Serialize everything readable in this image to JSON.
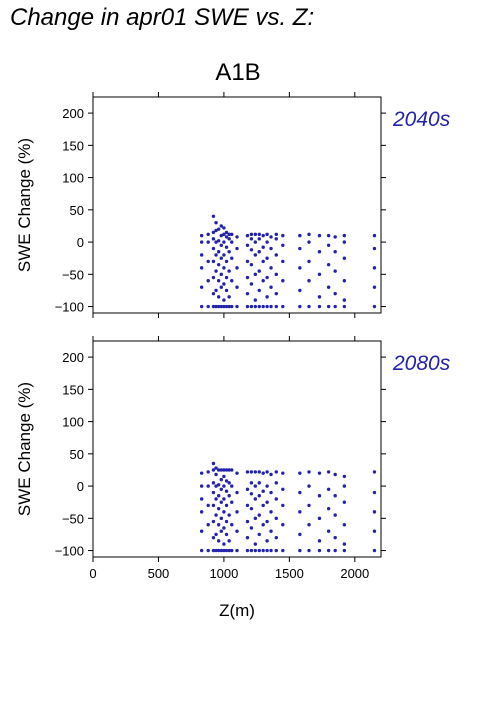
{
  "title": "Change in apr01 SWE vs. Z:",
  "chart_data": {
    "type": "scatter",
    "scenario": "A1B",
    "xlabel": "Z(m)",
    "ylabel": "SWE Change (%)",
    "xlim": [
      0,
      2200
    ],
    "ylim": [
      -110,
      225
    ],
    "x_ticks": [
      0,
      500,
      1000,
      1500,
      2000
    ],
    "y_ticks": [
      -100,
      -50,
      0,
      50,
      100,
      150,
      200
    ],
    "marker_color": "#2222aa",
    "label_color": "#2222aa",
    "grid": false,
    "panels": [
      {
        "label": "2040s",
        "points": [
          [
            830,
            -100
          ],
          [
            830,
            -70
          ],
          [
            830,
            -40
          ],
          [
            830,
            -20
          ],
          [
            830,
            0
          ],
          [
            830,
            10
          ],
          [
            880,
            -100
          ],
          [
            880,
            -60
          ],
          [
            880,
            -30
          ],
          [
            880,
            0
          ],
          [
            880,
            12
          ],
          [
            920,
            -100
          ],
          [
            920,
            -80
          ],
          [
            920,
            -55
          ],
          [
            920,
            -30
          ],
          [
            920,
            -10
          ],
          [
            920,
            5
          ],
          [
            920,
            15
          ],
          [
            920,
            40
          ],
          [
            940,
            -100
          ],
          [
            940,
            -75
          ],
          [
            940,
            -45
          ],
          [
            940,
            -20
          ],
          [
            940,
            0
          ],
          [
            940,
            18
          ],
          [
            940,
            30
          ],
          [
            960,
            -100
          ],
          [
            960,
            -85
          ],
          [
            960,
            -60
          ],
          [
            960,
            -35
          ],
          [
            960,
            -15
          ],
          [
            960,
            2
          ],
          [
            960,
            20
          ],
          [
            980,
            -100
          ],
          [
            980,
            -70
          ],
          [
            980,
            -50
          ],
          [
            980,
            -25
          ],
          [
            980,
            -5
          ],
          [
            980,
            10
          ],
          [
            980,
            25
          ],
          [
            1000,
            -100
          ],
          [
            1000,
            -90
          ],
          [
            1000,
            -65
          ],
          [
            1000,
            -40
          ],
          [
            1000,
            -20
          ],
          [
            1000,
            0
          ],
          [
            1000,
            12
          ],
          [
            1000,
            22
          ],
          [
            1020,
            -100
          ],
          [
            1020,
            -75
          ],
          [
            1020,
            -55
          ],
          [
            1020,
            -30
          ],
          [
            1020,
            -8
          ],
          [
            1020,
            8
          ],
          [
            1020,
            15
          ],
          [
            1040,
            -100
          ],
          [
            1040,
            -85
          ],
          [
            1040,
            -45
          ],
          [
            1040,
            -15
          ],
          [
            1040,
            5
          ],
          [
            1040,
            12
          ],
          [
            1060,
            -100
          ],
          [
            1060,
            -60
          ],
          [
            1060,
            -25
          ],
          [
            1060,
            0
          ],
          [
            1060,
            12
          ],
          [
            1100,
            -100
          ],
          [
            1100,
            -70
          ],
          [
            1100,
            -40
          ],
          [
            1100,
            -10
          ],
          [
            1100,
            8
          ],
          [
            1180,
            -100
          ],
          [
            1180,
            -80
          ],
          [
            1180,
            -55
          ],
          [
            1180,
            -30
          ],
          [
            1180,
            -5
          ],
          [
            1180,
            10
          ],
          [
            1210,
            -100
          ],
          [
            1210,
            -65
          ],
          [
            1210,
            -35
          ],
          [
            1210,
            -12
          ],
          [
            1210,
            5
          ],
          [
            1210,
            12
          ],
          [
            1240,
            -100
          ],
          [
            1240,
            -90
          ],
          [
            1240,
            -50
          ],
          [
            1240,
            -20
          ],
          [
            1240,
            0
          ],
          [
            1240,
            12
          ],
          [
            1270,
            -100
          ],
          [
            1270,
            -75
          ],
          [
            1270,
            -45
          ],
          [
            1270,
            -15
          ],
          [
            1270,
            5
          ],
          [
            1270,
            12
          ],
          [
            1300,
            -100
          ],
          [
            1300,
            -60
          ],
          [
            1300,
            -30
          ],
          [
            1300,
            -8
          ],
          [
            1300,
            10
          ],
          [
            1330,
            -100
          ],
          [
            1330,
            -85
          ],
          [
            1330,
            -55
          ],
          [
            1330,
            -25
          ],
          [
            1330,
            0
          ],
          [
            1330,
            12
          ],
          [
            1360,
            -100
          ],
          [
            1360,
            -70
          ],
          [
            1360,
            -40
          ],
          [
            1360,
            -10
          ],
          [
            1360,
            8
          ],
          [
            1400,
            -100
          ],
          [
            1400,
            -80
          ],
          [
            1400,
            -50
          ],
          [
            1400,
            -20
          ],
          [
            1400,
            5
          ],
          [
            1400,
            12
          ],
          [
            1450,
            -100
          ],
          [
            1450,
            -60
          ],
          [
            1450,
            -30
          ],
          [
            1450,
            -5
          ],
          [
            1450,
            10
          ],
          [
            1580,
            -100
          ],
          [
            1580,
            -75
          ],
          [
            1580,
            -40
          ],
          [
            1580,
            -10
          ],
          [
            1580,
            10
          ],
          [
            1650,
            -100
          ],
          [
            1650,
            -60
          ],
          [
            1650,
            -30
          ],
          [
            1650,
            0
          ],
          [
            1650,
            12
          ],
          [
            1730,
            -100
          ],
          [
            1730,
            -85
          ],
          [
            1730,
            -50
          ],
          [
            1730,
            -15
          ],
          [
            1730,
            10
          ],
          [
            1800,
            -100
          ],
          [
            1800,
            -70
          ],
          [
            1800,
            -35
          ],
          [
            1800,
            -5
          ],
          [
            1800,
            10
          ],
          [
            1850,
            -100
          ],
          [
            1850,
            -80
          ],
          [
            1850,
            -45
          ],
          [
            1850,
            -15
          ],
          [
            1850,
            8
          ],
          [
            1920,
            -100
          ],
          [
            1920,
            -90
          ],
          [
            1920,
            -60
          ],
          [
            1920,
            -25
          ],
          [
            1920,
            0
          ],
          [
            1920,
            10
          ],
          [
            2150,
            -100
          ],
          [
            2150,
            -70
          ],
          [
            2150,
            -40
          ],
          [
            2150,
            -10
          ],
          [
            2150,
            10
          ]
        ]
      },
      {
        "label": "2080s",
        "points": [
          [
            830,
            -100
          ],
          [
            830,
            -70
          ],
          [
            830,
            -40
          ],
          [
            830,
            -20
          ],
          [
            830,
            0
          ],
          [
            830,
            20
          ],
          [
            880,
            -100
          ],
          [
            880,
            -60
          ],
          [
            880,
            -30
          ],
          [
            880,
            0
          ],
          [
            880,
            22
          ],
          [
            920,
            -100
          ],
          [
            920,
            -80
          ],
          [
            920,
            -55
          ],
          [
            920,
            -30
          ],
          [
            920,
            -10
          ],
          [
            920,
            5
          ],
          [
            920,
            25
          ],
          [
            920,
            35
          ],
          [
            940,
            -100
          ],
          [
            940,
            -75
          ],
          [
            940,
            -45
          ],
          [
            940,
            -20
          ],
          [
            940,
            0
          ],
          [
            940,
            18
          ],
          [
            940,
            28
          ],
          [
            960,
            -100
          ],
          [
            960,
            -85
          ],
          [
            960,
            -60
          ],
          [
            960,
            -35
          ],
          [
            960,
            -15
          ],
          [
            960,
            2
          ],
          [
            960,
            25
          ],
          [
            980,
            -100
          ],
          [
            980,
            -70
          ],
          [
            980,
            -50
          ],
          [
            980,
            -25
          ],
          [
            980,
            -5
          ],
          [
            980,
            10
          ],
          [
            980,
            25
          ],
          [
            1000,
            -100
          ],
          [
            1000,
            -90
          ],
          [
            1000,
            -65
          ],
          [
            1000,
            -40
          ],
          [
            1000,
            -20
          ],
          [
            1000,
            0
          ],
          [
            1000,
            15
          ],
          [
            1000,
            25
          ],
          [
            1020,
            -100
          ],
          [
            1020,
            -75
          ],
          [
            1020,
            -55
          ],
          [
            1020,
            -30
          ],
          [
            1020,
            -8
          ],
          [
            1020,
            8
          ],
          [
            1020,
            25
          ],
          [
            1040,
            -100
          ],
          [
            1040,
            -85
          ],
          [
            1040,
            -45
          ],
          [
            1040,
            -15
          ],
          [
            1040,
            5
          ],
          [
            1040,
            25
          ],
          [
            1060,
            -100
          ],
          [
            1060,
            -60
          ],
          [
            1060,
            -25
          ],
          [
            1060,
            0
          ],
          [
            1060,
            25
          ],
          [
            1100,
            -100
          ],
          [
            1100,
            -70
          ],
          [
            1100,
            -40
          ],
          [
            1100,
            -10
          ],
          [
            1100,
            20
          ],
          [
            1180,
            -100
          ],
          [
            1180,
            -80
          ],
          [
            1180,
            -55
          ],
          [
            1180,
            -30
          ],
          [
            1180,
            -5
          ],
          [
            1180,
            22
          ],
          [
            1210,
            -100
          ],
          [
            1210,
            -65
          ],
          [
            1210,
            -35
          ],
          [
            1210,
            -12
          ],
          [
            1210,
            5
          ],
          [
            1210,
            22
          ],
          [
            1240,
            -100
          ],
          [
            1240,
            -90
          ],
          [
            1240,
            -50
          ],
          [
            1240,
            -20
          ],
          [
            1240,
            0
          ],
          [
            1240,
            22
          ],
          [
            1270,
            -100
          ],
          [
            1270,
            -75
          ],
          [
            1270,
            -45
          ],
          [
            1270,
            -15
          ],
          [
            1270,
            5
          ],
          [
            1270,
            22
          ],
          [
            1300,
            -100
          ],
          [
            1300,
            -60
          ],
          [
            1300,
            -30
          ],
          [
            1300,
            -8
          ],
          [
            1300,
            20
          ],
          [
            1330,
            -100
          ],
          [
            1330,
            -85
          ],
          [
            1330,
            -55
          ],
          [
            1330,
            -25
          ],
          [
            1330,
            0
          ],
          [
            1330,
            22
          ],
          [
            1360,
            -100
          ],
          [
            1360,
            -70
          ],
          [
            1360,
            -40
          ],
          [
            1360,
            -10
          ],
          [
            1360,
            18
          ],
          [
            1400,
            -100
          ],
          [
            1400,
            -80
          ],
          [
            1400,
            -50
          ],
          [
            1400,
            -20
          ],
          [
            1400,
            5
          ],
          [
            1400,
            22
          ],
          [
            1450,
            -100
          ],
          [
            1450,
            -60
          ],
          [
            1450,
            -30
          ],
          [
            1450,
            -5
          ],
          [
            1450,
            20
          ],
          [
            1580,
            -100
          ],
          [
            1580,
            -75
          ],
          [
            1580,
            -40
          ],
          [
            1580,
            -10
          ],
          [
            1580,
            20
          ],
          [
            1650,
            -100
          ],
          [
            1650,
            -60
          ],
          [
            1650,
            -30
          ],
          [
            1650,
            0
          ],
          [
            1650,
            22
          ],
          [
            1730,
            -100
          ],
          [
            1730,
            -85
          ],
          [
            1730,
            -50
          ],
          [
            1730,
            -15
          ],
          [
            1730,
            20
          ],
          [
            1800,
            -100
          ],
          [
            1800,
            -70
          ],
          [
            1800,
            -35
          ],
          [
            1800,
            -5
          ],
          [
            1800,
            22
          ],
          [
            1850,
            -100
          ],
          [
            1850,
            -80
          ],
          [
            1850,
            -45
          ],
          [
            1850,
            -15
          ],
          [
            1850,
            18
          ],
          [
            1920,
            -100
          ],
          [
            1920,
            -90
          ],
          [
            1920,
            -60
          ],
          [
            1920,
            -25
          ],
          [
            1920,
            0
          ],
          [
            1920,
            15
          ],
          [
            2150,
            -100
          ],
          [
            2150,
            -70
          ],
          [
            2150,
            -40
          ],
          [
            2150,
            -10
          ],
          [
            2150,
            22
          ]
        ]
      }
    ]
  }
}
